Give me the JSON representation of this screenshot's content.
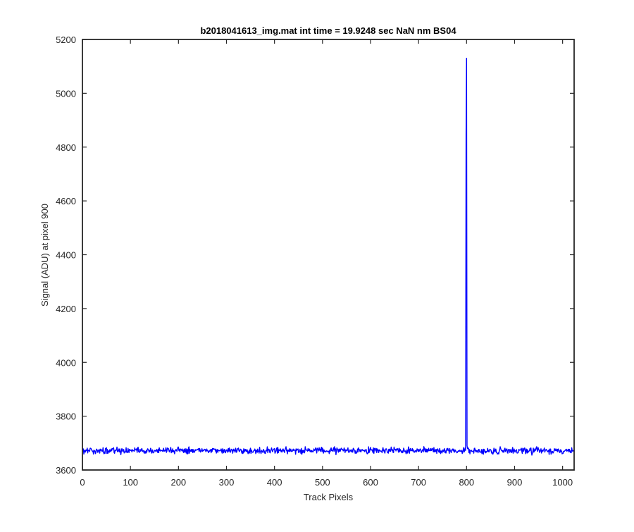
{
  "chart_data": {
    "type": "line",
    "title": "b2018041613_img.mat int time = 19.9248 sec  NaN nm BS04",
    "xlabel": "Track Pixels",
    "ylabel": "Signal (ADU) at pixel 900",
    "xlim": [
      0,
      1024
    ],
    "ylim": [
      3600,
      5200
    ],
    "xticks": [
      0,
      100,
      200,
      300,
      400,
      500,
      600,
      700,
      800,
      900,
      1000
    ],
    "yticks": [
      3600,
      3800,
      4000,
      4200,
      4400,
      4600,
      4800,
      5000,
      5200
    ],
    "grid": false,
    "line_color": "#0000ff",
    "series": [
      {
        "baseline": 3672,
        "noise_amplitude": 10,
        "pixel_count": 1024,
        "spikes": [
          {
            "x": 799,
            "y": 4850
          },
          {
            "x": 800,
            "y": 5130
          },
          {
            "x": 801,
            "y": 3690
          }
        ]
      }
    ]
  }
}
